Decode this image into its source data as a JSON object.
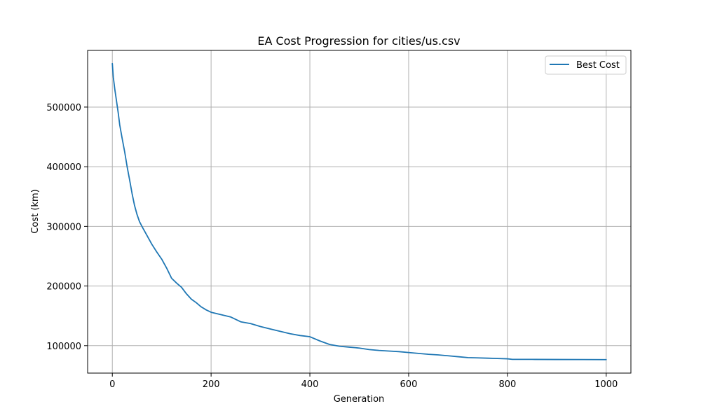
{
  "chart_data": {
    "type": "line",
    "title": "EA Cost Progression for cities/us.csv",
    "xlabel": "Generation",
    "ylabel": "Cost (km)",
    "xlim": [
      -50,
      1050
    ],
    "ylim": [
      54000,
      595000
    ],
    "xticks": [
      0,
      200,
      400,
      600,
      800,
      1000
    ],
    "yticks": [
      100000,
      200000,
      300000,
      400000,
      500000
    ],
    "xtick_labels": [
      "0",
      "200",
      "400",
      "600",
      "800",
      "1000"
    ],
    "ytick_labels": [
      "100000",
      "200000",
      "300000",
      "400000",
      "500000"
    ],
    "grid": true,
    "legend_position": "top-right",
    "colors": {
      "series": "#1f77b4",
      "grid": "#b0b0b0",
      "axes": "#000000"
    },
    "series": [
      {
        "name": "Best Cost",
        "x": [
          0,
          2,
          5,
          8,
          12,
          15,
          20,
          25,
          30,
          35,
          40,
          45,
          50,
          55,
          60,
          70,
          80,
          90,
          100,
          110,
          120,
          130,
          140,
          150,
          160,
          170,
          180,
          190,
          200,
          220,
          240,
          260,
          280,
          300,
          320,
          340,
          360,
          380,
          400,
          420,
          440,
          460,
          480,
          500,
          520,
          540,
          560,
          580,
          600,
          620,
          640,
          660,
          680,
          700,
          720,
          740,
          760,
          780,
          800,
          810,
          850,
          900,
          950,
          1000
        ],
        "y": [
          573000,
          550000,
          530000,
          513000,
          490000,
          470000,
          447000,
          425000,
          400000,
          378000,
          355000,
          335000,
          320000,
          308000,
          300000,
          285000,
          270000,
          257000,
          245000,
          230000,
          213000,
          205000,
          198000,
          187000,
          178000,
          172000,
          165000,
          160000,
          156000,
          152000,
          148000,
          140000,
          137000,
          132000,
          128000,
          124000,
          120000,
          117000,
          115000,
          108000,
          102000,
          99000,
          97500,
          96000,
          93500,
          92000,
          91000,
          90000,
          88500,
          87000,
          85500,
          84500,
          83000,
          81500,
          80000,
          79500,
          79000,
          78500,
          78000,
          77000,
          77000,
          76800,
          76700,
          76600
        ]
      }
    ]
  }
}
